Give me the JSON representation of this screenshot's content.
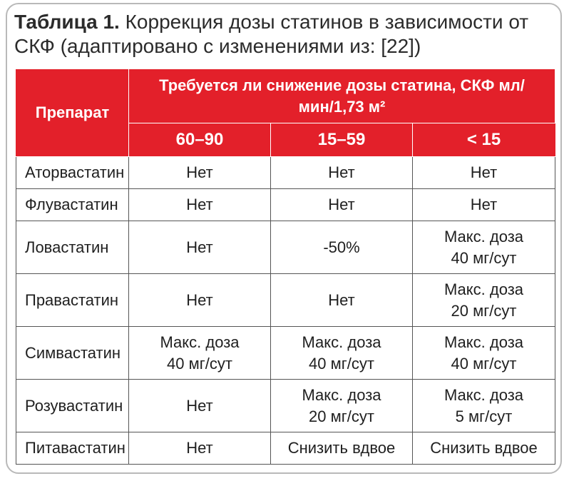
{
  "caption": {
    "lead": "Таблица 1.",
    "text": "Коррекция дозы статинов в зависимости от СКФ (адаптировано с изменениями из: [22])"
  },
  "table": {
    "drug_header": "Препарат",
    "group_header_line1": "Требуется ли снижение дозы статина, СКФ мл/",
    "group_header_line2": "мин/1,73 м²",
    "bands": [
      "60–90",
      "15–59",
      "< 15"
    ],
    "rows": [
      {
        "drug": "Аторвастатин",
        "cells": [
          [
            "Нет"
          ],
          [
            "Нет"
          ],
          [
            "Нет"
          ]
        ]
      },
      {
        "drug": "Флувастатин",
        "cells": [
          [
            "Нет"
          ],
          [
            "Нет"
          ],
          [
            "Нет"
          ]
        ]
      },
      {
        "drug": "Ловастатин",
        "cells": [
          [
            "Нет"
          ],
          [
            "-50%"
          ],
          [
            "Макс. доза",
            "40 мг/сут"
          ]
        ]
      },
      {
        "drug": "Правастатин",
        "cells": [
          [
            "Нет"
          ],
          [
            "Нет"
          ],
          [
            "Макс. доза",
            "20 мг/сут"
          ]
        ]
      },
      {
        "drug": "Симвастатин",
        "cells": [
          [
            "Макс. доза",
            "40 мг/сут"
          ],
          [
            "Макс. доза",
            "40 мг/сут"
          ],
          [
            "Макс. доза",
            "40 мг/сут"
          ]
        ]
      },
      {
        "drug": "Розувастатин",
        "cells": [
          [
            "Нет"
          ],
          [
            "Макс. доза",
            "20 мг/сут"
          ],
          [
            "Макс. доза",
            "5 мг/сут"
          ]
        ]
      },
      {
        "drug": "Питавастатин",
        "cells": [
          [
            "Нет"
          ],
          [
            "Снизить вдвое"
          ],
          [
            "Снизить вдвое"
          ]
        ]
      }
    ]
  },
  "colors": {
    "header_red": "#e3202a",
    "frame_border": "#b9b9b9",
    "grid": "#555555"
  }
}
